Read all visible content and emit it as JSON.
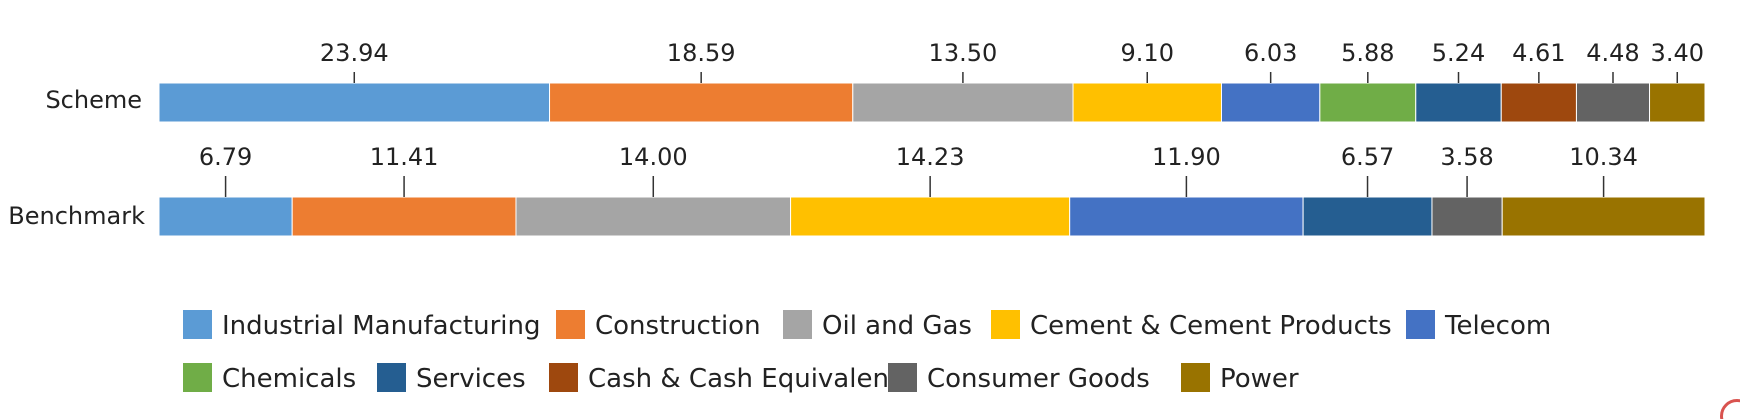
{
  "chart_data": {
    "type": "bar",
    "orientation": "horizontal-stacked",
    "categories": [
      "Scheme",
      "Benchmark"
    ],
    "series": [
      {
        "name": "Industrial Manufacturing",
        "color": "#5b9bd5",
        "values": [
          23.94,
          6.79
        ]
      },
      {
        "name": "Construction",
        "color": "#ed7d31",
        "values": [
          18.59,
          11.41
        ]
      },
      {
        "name": "Oil and Gas",
        "color": "#a5a5a5",
        "values": [
          13.5,
          14.0
        ]
      },
      {
        "name": "Cement & Cement Products",
        "color": "#ffc000",
        "values": [
          9.1,
          14.23
        ]
      },
      {
        "name": "Telecom",
        "color": "#4472c4",
        "values": [
          6.03,
          11.9
        ]
      },
      {
        "name": "Chemicals",
        "color": "#70ad47",
        "values": [
          5.88,
          null
        ]
      },
      {
        "name": "Services",
        "color": "#255e91",
        "values": [
          5.24,
          6.57
        ]
      },
      {
        "name": "Cash & Cash Equivalent",
        "color": "#9e480e",
        "values": [
          4.61,
          null
        ]
      },
      {
        "name": "Consumer Goods",
        "color": "#636363",
        "values": [
          4.48,
          3.58
        ]
      },
      {
        "name": "Power",
        "color": "#997300",
        "values": [
          3.4,
          10.34
        ]
      }
    ],
    "data_labels": {
      "Scheme": [
        "23.94",
        "18.59",
        "13.50",
        "9.10",
        "6.03",
        "5.88",
        "5.24",
        "4.61",
        "4.48",
        "3.40"
      ],
      "Benchmark": [
        "6.79",
        "11.41",
        "14.00",
        "14.23",
        "11.90",
        "",
        "6.57",
        "",
        "3.58",
        "10.34"
      ]
    },
    "legend": "bottom",
    "grid": false,
    "title": "",
    "xlabel": "",
    "ylabel": ""
  }
}
